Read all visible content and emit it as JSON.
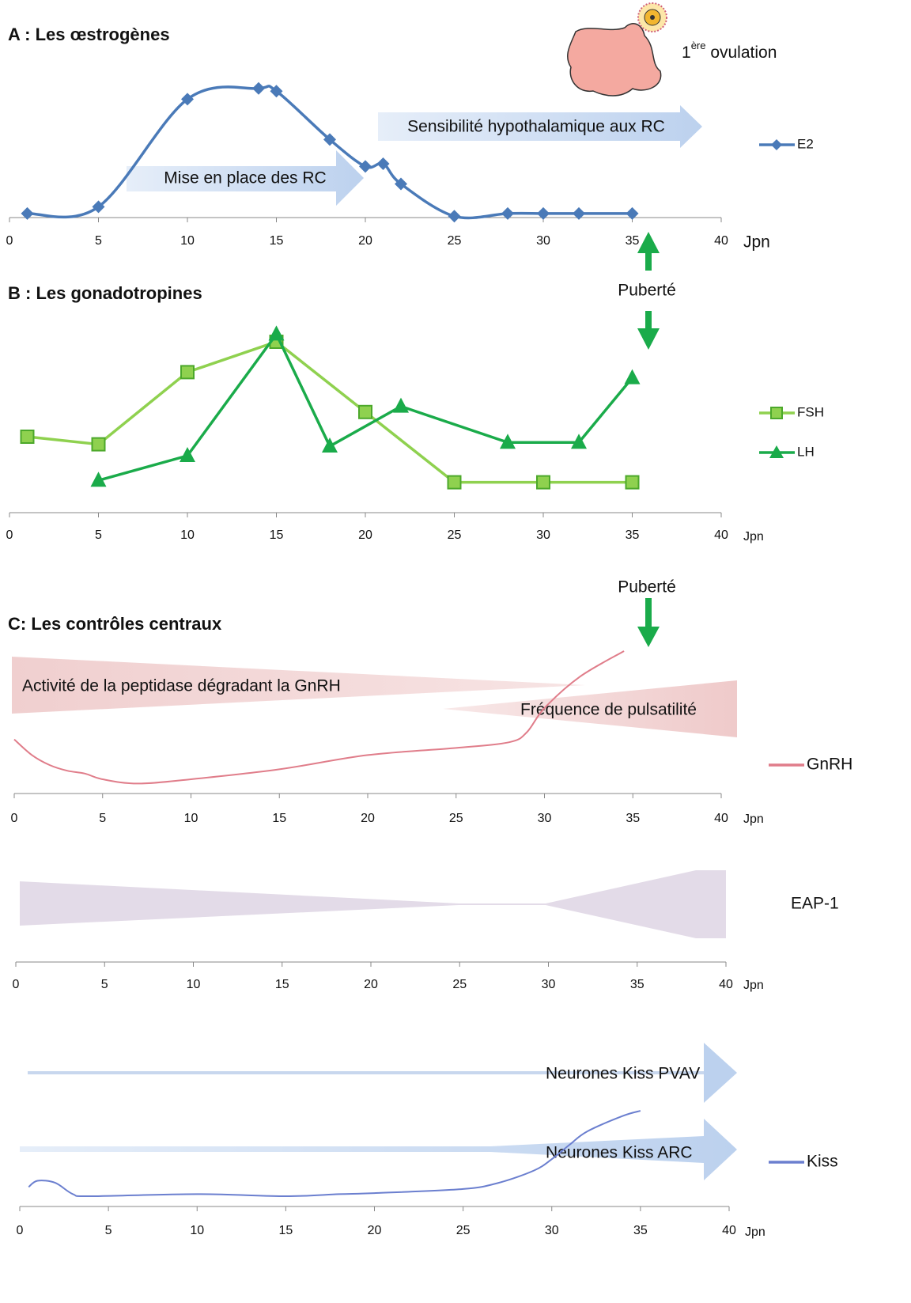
{
  "chart_data": [
    {
      "type": "line",
      "title": "A : Les œstrogènes",
      "xlabel": "Jpn",
      "xlim": [
        0,
        40
      ],
      "xticks": [
        0,
        5,
        10,
        15,
        20,
        25,
        30,
        35,
        40
      ],
      "ylim": [
        0,
        100
      ],
      "smooth": true,
      "series": [
        {
          "name": "E2",
          "color": "#4a7ab8",
          "marker": "diamond",
          "x": [
            1,
            5,
            10,
            14,
            15,
            18,
            20,
            21,
            22,
            25,
            28,
            30,
            32,
            35
          ],
          "values": [
            3,
            8,
            88,
            96,
            94,
            58,
            38,
            40,
            25,
            1,
            3,
            3,
            3,
            3
          ]
        }
      ],
      "annotations": [
        "Mise en place des RC",
        "Sensibilité hypothalamique aux RC"
      ],
      "ovulation_label": {
        "number": "1",
        "superscript": "ère",
        "text": "ovulation"
      }
    },
    {
      "type": "line",
      "title": "B : Les gonadotropines",
      "xlabel": "Jpn",
      "xlim": [
        0,
        40
      ],
      "xticks": [
        0,
        5,
        10,
        15,
        20,
        25,
        30,
        35,
        40
      ],
      "ylim": [
        0,
        100
      ],
      "smooth": false,
      "series": [
        {
          "name": "FSH",
          "color": "#8fd14f",
          "marker": "square",
          "x": [
            1,
            5,
            10,
            15,
            20,
            25,
            30,
            35
          ],
          "values": [
            40,
            36,
            74,
            90,
            53,
            16,
            16,
            16
          ]
        },
        {
          "name": "LH",
          "color": "#1aab4a",
          "marker": "triangle",
          "x": [
            5,
            10,
            15,
            18,
            22,
            28,
            32,
            35
          ],
          "values": [
            17,
            30,
            94,
            35,
            56,
            37,
            37,
            71
          ]
        }
      ],
      "annotations": [
        "Puberté"
      ]
    },
    {
      "type": "line",
      "title": "C: Les contrôles centraux",
      "xlabel": "Jpn",
      "xlim": [
        0,
        40
      ],
      "xticks": [
        0,
        5,
        10,
        15,
        20,
        25,
        30,
        35,
        40
      ],
      "ylim": [
        0,
        100
      ],
      "smooth": true,
      "series": [
        {
          "name": "GnRH",
          "color": "#e07d8a",
          "marker": "none",
          "x": [
            0,
            1,
            2,
            3,
            4,
            5,
            7,
            10,
            15,
            20,
            25,
            28,
            29,
            30,
            32,
            34.5
          ],
          "values": [
            38,
            27,
            20,
            16,
            14,
            10,
            7,
            10,
            17,
            27,
            32,
            36,
            43,
            60,
            82,
            100
          ]
        }
      ],
      "annotations": [
        "Puberté",
        "Activité de la peptidase dégradant la GnRH",
        "Fréquence de pulsatilité"
      ]
    },
    {
      "type": "band",
      "xlabel": "Jpn",
      "xlim": [
        0,
        40
      ],
      "xticks": [
        0,
        5,
        10,
        15,
        20,
        25,
        30,
        35,
        40
      ],
      "label": "EAP-1"
    },
    {
      "type": "line",
      "xlabel": "Jpn",
      "xlim": [
        0,
        40
      ],
      "xticks": [
        0,
        5,
        10,
        15,
        20,
        25,
        30,
        35,
        40
      ],
      "ylim": [
        0,
        100
      ],
      "smooth": true,
      "series": [
        {
          "name": "Kiss",
          "color": "#6b7fcf",
          "marker": "none",
          "x": [
            0.5,
            1,
            2,
            3,
            4,
            10,
            15,
            18,
            20,
            25,
            27,
            29,
            30,
            31,
            32,
            34,
            35
          ],
          "values": [
            19,
            25,
            23,
            12,
            10,
            12,
            10,
            12,
            13,
            17,
            23,
            35,
            46,
            60,
            73,
            88,
            93
          ]
        }
      ],
      "annotations": [
        "Neurones Kiss PVAV",
        "Neurones Kiss ARC"
      ]
    }
  ]
}
